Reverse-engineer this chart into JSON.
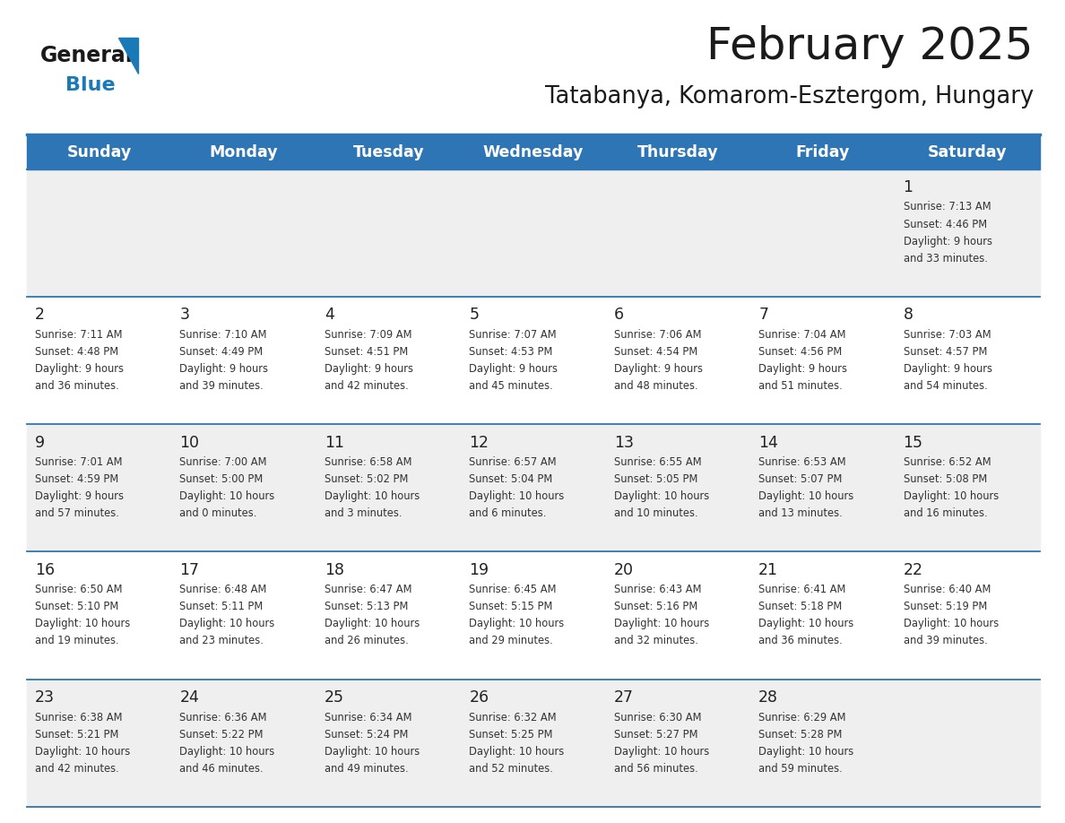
{
  "title": "February 2025",
  "subtitle": "Tatabanya, Komarom-Esztergom, Hungary",
  "days_of_week": [
    "Sunday",
    "Monday",
    "Tuesday",
    "Wednesday",
    "Thursday",
    "Friday",
    "Saturday"
  ],
  "header_bg": "#2e75b6",
  "header_text": "#ffffff",
  "row_bg_odd": "#efefef",
  "row_bg_even": "#ffffff",
  "cell_border_color": "#2e75b6",
  "day_num_color": "#222222",
  "info_text_color": "#333333",
  "title_color": "#1a1a1a",
  "subtitle_color": "#1a1a1a",
  "logo_general_color": "#1a1a1a",
  "logo_blue_color": "#1a7ab8",
  "weeks": [
    {
      "days": [
        {
          "date": null,
          "sunrise": null,
          "sunset": null,
          "daylight": null
        },
        {
          "date": null,
          "sunrise": null,
          "sunset": null,
          "daylight": null
        },
        {
          "date": null,
          "sunrise": null,
          "sunset": null,
          "daylight": null
        },
        {
          "date": null,
          "sunrise": null,
          "sunset": null,
          "daylight": null
        },
        {
          "date": null,
          "sunrise": null,
          "sunset": null,
          "daylight": null
        },
        {
          "date": null,
          "sunrise": null,
          "sunset": null,
          "daylight": null
        },
        {
          "date": 1,
          "sunrise": "7:13 AM",
          "sunset": "4:46 PM",
          "daylight": "9 hours\nand 33 minutes."
        }
      ]
    },
    {
      "days": [
        {
          "date": 2,
          "sunrise": "7:11 AM",
          "sunset": "4:48 PM",
          "daylight": "9 hours\nand 36 minutes."
        },
        {
          "date": 3,
          "sunrise": "7:10 AM",
          "sunset": "4:49 PM",
          "daylight": "9 hours\nand 39 minutes."
        },
        {
          "date": 4,
          "sunrise": "7:09 AM",
          "sunset": "4:51 PM",
          "daylight": "9 hours\nand 42 minutes."
        },
        {
          "date": 5,
          "sunrise": "7:07 AM",
          "sunset": "4:53 PM",
          "daylight": "9 hours\nand 45 minutes."
        },
        {
          "date": 6,
          "sunrise": "7:06 AM",
          "sunset": "4:54 PM",
          "daylight": "9 hours\nand 48 minutes."
        },
        {
          "date": 7,
          "sunrise": "7:04 AM",
          "sunset": "4:56 PM",
          "daylight": "9 hours\nand 51 minutes."
        },
        {
          "date": 8,
          "sunrise": "7:03 AM",
          "sunset": "4:57 PM",
          "daylight": "9 hours\nand 54 minutes."
        }
      ]
    },
    {
      "days": [
        {
          "date": 9,
          "sunrise": "7:01 AM",
          "sunset": "4:59 PM",
          "daylight": "9 hours\nand 57 minutes."
        },
        {
          "date": 10,
          "sunrise": "7:00 AM",
          "sunset": "5:00 PM",
          "daylight": "10 hours\nand 0 minutes."
        },
        {
          "date": 11,
          "sunrise": "6:58 AM",
          "sunset": "5:02 PM",
          "daylight": "10 hours\nand 3 minutes."
        },
        {
          "date": 12,
          "sunrise": "6:57 AM",
          "sunset": "5:04 PM",
          "daylight": "10 hours\nand 6 minutes."
        },
        {
          "date": 13,
          "sunrise": "6:55 AM",
          "sunset": "5:05 PM",
          "daylight": "10 hours\nand 10 minutes."
        },
        {
          "date": 14,
          "sunrise": "6:53 AM",
          "sunset": "5:07 PM",
          "daylight": "10 hours\nand 13 minutes."
        },
        {
          "date": 15,
          "sunrise": "6:52 AM",
          "sunset": "5:08 PM",
          "daylight": "10 hours\nand 16 minutes."
        }
      ]
    },
    {
      "days": [
        {
          "date": 16,
          "sunrise": "6:50 AM",
          "sunset": "5:10 PM",
          "daylight": "10 hours\nand 19 minutes."
        },
        {
          "date": 17,
          "sunrise": "6:48 AM",
          "sunset": "5:11 PM",
          "daylight": "10 hours\nand 23 minutes."
        },
        {
          "date": 18,
          "sunrise": "6:47 AM",
          "sunset": "5:13 PM",
          "daylight": "10 hours\nand 26 minutes."
        },
        {
          "date": 19,
          "sunrise": "6:45 AM",
          "sunset": "5:15 PM",
          "daylight": "10 hours\nand 29 minutes."
        },
        {
          "date": 20,
          "sunrise": "6:43 AM",
          "sunset": "5:16 PM",
          "daylight": "10 hours\nand 32 minutes."
        },
        {
          "date": 21,
          "sunrise": "6:41 AM",
          "sunset": "5:18 PM",
          "daylight": "10 hours\nand 36 minutes."
        },
        {
          "date": 22,
          "sunrise": "6:40 AM",
          "sunset": "5:19 PM",
          "daylight": "10 hours\nand 39 minutes."
        }
      ]
    },
    {
      "days": [
        {
          "date": 23,
          "sunrise": "6:38 AM",
          "sunset": "5:21 PM",
          "daylight": "10 hours\nand 42 minutes."
        },
        {
          "date": 24,
          "sunrise": "6:36 AM",
          "sunset": "5:22 PM",
          "daylight": "10 hours\nand 46 minutes."
        },
        {
          "date": 25,
          "sunrise": "6:34 AM",
          "sunset": "5:24 PM",
          "daylight": "10 hours\nand 49 minutes."
        },
        {
          "date": 26,
          "sunrise": "6:32 AM",
          "sunset": "5:25 PM",
          "daylight": "10 hours\nand 52 minutes."
        },
        {
          "date": 27,
          "sunrise": "6:30 AM",
          "sunset": "5:27 PM",
          "daylight": "10 hours\nand 56 minutes."
        },
        {
          "date": 28,
          "sunrise": "6:29 AM",
          "sunset": "5:28 PM",
          "daylight": "10 hours\nand 59 minutes."
        },
        {
          "date": null,
          "sunrise": null,
          "sunset": null,
          "daylight": null
        }
      ]
    }
  ]
}
